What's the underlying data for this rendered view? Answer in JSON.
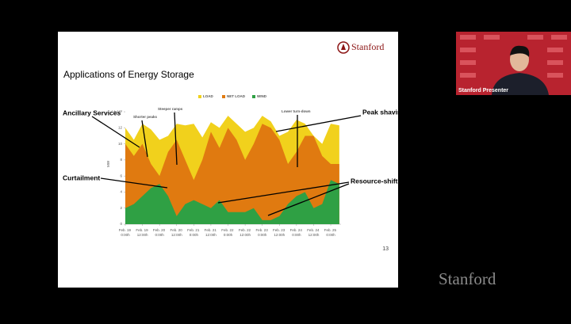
{
  "slide": {
    "title": "Applications of Energy Storage",
    "logo": "Stanford",
    "page_number": "13",
    "annotations": [
      "Ancillary Services",
      "Peak shaving",
      "Curtailment",
      "Resource-shifting"
    ]
  },
  "presenter": {
    "label": "Stanford Presenter"
  },
  "watermark": "Stanford",
  "chart_data": {
    "type": "area",
    "y_label": "MW",
    "annotations": [
      "Shorter peaks",
      "Steeper ramps",
      "Lower turn-down"
    ],
    "x": [
      0,
      0.5,
      1,
      1.5,
      2,
      2.5,
      3,
      3.5,
      4,
      4.5,
      5,
      5.5,
      6,
      6.5,
      7,
      7.5,
      8,
      8.5,
      9,
      9.5,
      10,
      10.5,
      11,
      11.5,
      12,
      12.5
    ],
    "series": [
      {
        "name": "LOAD",
        "color": "#f1d11c",
        "values": [
          12,
          10.5,
          12.5,
          11.8,
          10.5,
          11,
          12.5,
          12.3,
          12.5,
          10.8,
          12.7,
          12,
          13.5,
          12.5,
          11.5,
          12,
          13.5,
          12.8,
          11,
          11.5,
          13,
          12.5,
          11,
          10,
          12.5,
          12.3
        ]
      },
      {
        "name": "NET LOAD",
        "color": "#e07a10",
        "values": [
          10,
          8.5,
          10,
          7.5,
          6,
          9,
          10.5,
          8,
          5.5,
          8,
          11.5,
          9.5,
          12,
          10.5,
          8,
          10,
          12.5,
          12,
          10.5,
          7.5,
          9,
          11,
          11,
          8.5,
          7.5,
          7.5
        ]
      },
      {
        "name": "WIND",
        "color": "#2fa044",
        "values": [
          2,
          2.5,
          3.5,
          4.5,
          5,
          3.5,
          1,
          2.5,
          3,
          2.5,
          2,
          3,
          1.5,
          1.5,
          1.5,
          2,
          0.5,
          0.5,
          1,
          2.5,
          3.5,
          4,
          2,
          2.5,
          5.5,
          5
        ]
      }
    ],
    "xlim": [
      0,
      12.6
    ],
    "ylim": [
      0,
      14.5
    ],
    "yticks": [
      0,
      2,
      4,
      6,
      8,
      10,
      12,
      {
        "value": 14,
        "label": "14x10³"
      }
    ],
    "xticks": [
      {
        "value": 0,
        "label": "Feb. 19 0:00h"
      },
      {
        "value": 1,
        "label": "Feb. 19 12:00h"
      },
      {
        "value": 2,
        "label": "Feb. 20 0:00h"
      },
      {
        "value": 3,
        "label": "Feb. 20 12:00h"
      },
      {
        "value": 4,
        "label": "Feb. 21 0:00h"
      },
      {
        "value": 5,
        "label": "Feb. 21 12:00h"
      },
      {
        "value": 6,
        "label": "Feb. 22 0:00h"
      },
      {
        "value": 7,
        "label": "Feb. 22 12:00h"
      },
      {
        "value": 8,
        "label": "Feb. 23 0:00h"
      },
      {
        "value": 9,
        "label": "Feb. 23 12:00h"
      },
      {
        "value": 10,
        "label": "Feb. 24 0:00h"
      },
      {
        "value": 11,
        "label": "Feb. 24 12:00h"
      },
      {
        "value": 12,
        "label": "Feb. 25 0:00h"
      }
    ],
    "legend": "top"
  }
}
